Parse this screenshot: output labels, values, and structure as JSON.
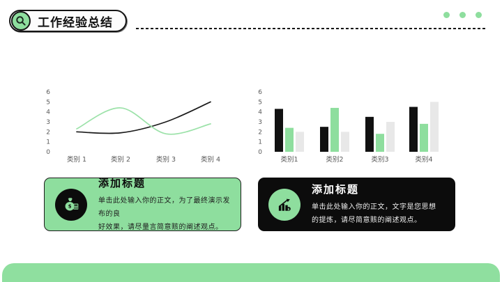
{
  "header": {
    "title": "工作经验总结",
    "icon": "magnifier-icon",
    "accent_color": "#8EDE9E",
    "dots_count": 3
  },
  "cards": [
    {
      "style": "green",
      "icon": "money-bag-icon",
      "title": "添加标题",
      "body_lines": [
        "单击此处输入你的正文，为了最终演示发布的良",
        "好效果，请尽量言简意赅的阐述观点。"
      ]
    },
    {
      "style": "black",
      "icon": "growth-chart-icon",
      "title": "添加标题",
      "body_lines": [
        "单击此处输入你的正文，文字是您思想",
        "的提炼，请尽简意赅的阐述观点。"
      ]
    }
  ],
  "chart_data": [
    {
      "type": "line",
      "categories": [
        "类别 1",
        "类别 2",
        "类别 3",
        "类别 4"
      ],
      "series": [
        {
          "name": "series-black",
          "color": "#1a1a1a",
          "values": [
            2.0,
            1.9,
            3.0,
            5.0
          ]
        },
        {
          "name": "series-green",
          "color": "#9CE2A9",
          "values": [
            2.3,
            4.4,
            1.8,
            2.8
          ]
        }
      ],
      "ylim": [
        0,
        6
      ],
      "yticks": [
        0,
        1,
        2,
        3,
        4,
        5,
        6
      ],
      "grid": false,
      "legend": "none"
    },
    {
      "type": "bar",
      "categories": [
        "类别1",
        "类别2",
        "类别3",
        "类别4"
      ],
      "series": [
        {
          "name": "series-black",
          "color": "#111111",
          "values": [
            4.3,
            2.5,
            3.5,
            4.5
          ]
        },
        {
          "name": "series-green",
          "color": "#8EDE9E",
          "values": [
            2.4,
            4.4,
            1.8,
            2.8
          ]
        },
        {
          "name": "series-gray",
          "color": "#E8E8E8",
          "values": [
            2.0,
            2.0,
            3.0,
            5.0
          ]
        }
      ],
      "ylim": [
        0,
        6
      ],
      "yticks": [
        0,
        1,
        2,
        3,
        4,
        5,
        6
      ],
      "grid": false,
      "legend": "none"
    }
  ]
}
